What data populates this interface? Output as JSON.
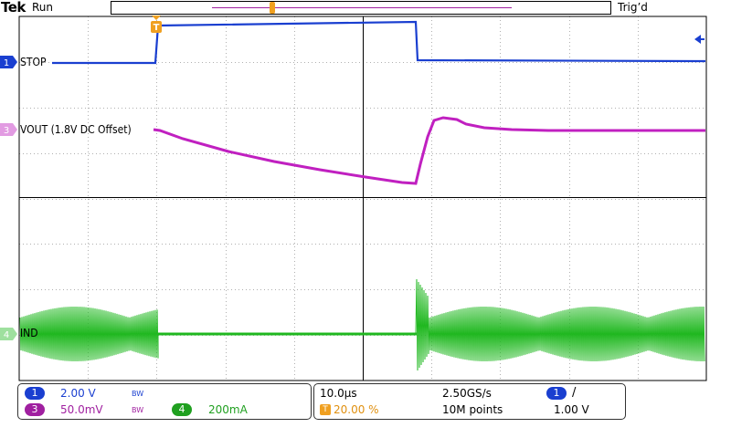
{
  "header": {
    "brand": "Tek",
    "run_state": "Run",
    "trigger_state": "Trig’d"
  },
  "channels": {
    "ch1": {
      "label": "STOP",
      "number": "1",
      "scale": "2.00 V",
      "color": "#1a3fd0"
    },
    "ch3": {
      "label": "VOUT (1.8V DC Offset)",
      "number": "3",
      "scale": "50.0mV",
      "color": "#c020c0"
    },
    "ch4": {
      "label": "IND",
      "number": "4",
      "scale": "200mA",
      "color": "#20c020"
    }
  },
  "timebase": {
    "time_div": "10.0µs",
    "sample_rate": "2.50GS/s",
    "trigger_pos": "20.00 %",
    "record_length": "10M points"
  },
  "trigger": {
    "source": "1",
    "slope": "/",
    "level": "1.00 V"
  },
  "bw_mark": "BW",
  "icons": {
    "trigger_marker": "trigger-t-icon",
    "slope": "rising-edge-icon",
    "level": "trigger-level-arrow-icon"
  }
}
